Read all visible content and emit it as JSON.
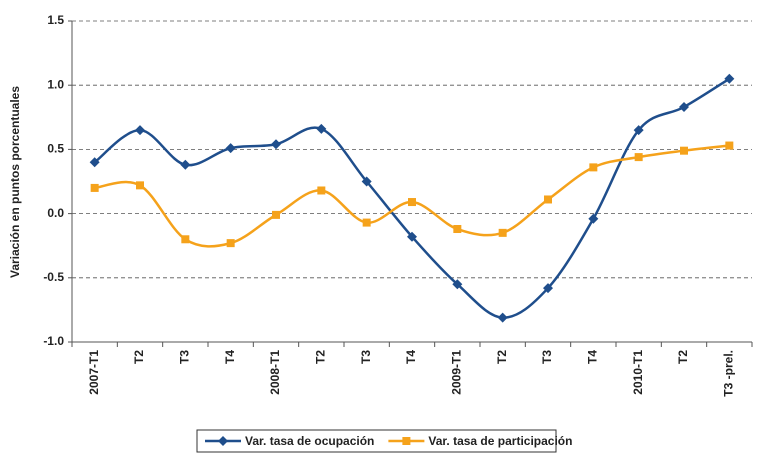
{
  "chart_data": {
    "type": "line",
    "y_label": "Variación en puntos porcentuales",
    "categories": [
      "2007-T1",
      "T2",
      "T3",
      "T4",
      "2008-T1",
      "T2",
      "T3",
      "T4",
      "2009-T1",
      "T2",
      "T3",
      "T4",
      "2010-T1",
      "T2",
      "T3 -prel."
    ],
    "series": [
      {
        "name": "Var. tasa de ocupación",
        "color": "#1f4e8c",
        "marker": "diamond",
        "values": [
          0.4,
          0.65,
          0.38,
          0.51,
          0.54,
          0.66,
          0.25,
          -0.18,
          -0.55,
          -0.81,
          -0.58,
          -0.04,
          0.65,
          0.83,
          1.05
        ]
      },
      {
        "name": "Var. tasa de participación",
        "color": "#f5a21b",
        "marker": "square",
        "values": [
          0.2,
          0.22,
          -0.2,
          -0.23,
          -0.01,
          0.18,
          -0.07,
          0.09,
          -0.12,
          -0.15,
          0.11,
          0.36,
          0.44,
          0.49,
          0.53
        ]
      }
    ],
    "ylim": [
      -1,
      1.5
    ],
    "yticks": [
      {
        "value": -1,
        "label": "-1.0"
      },
      -0.5,
      {
        "value": 0,
        "label": "0.0"
      },
      0.5,
      {
        "value": 1,
        "label": "1.0"
      },
      1.5
    ],
    "grid": true,
    "smooth": true,
    "legend": "bottom"
  }
}
